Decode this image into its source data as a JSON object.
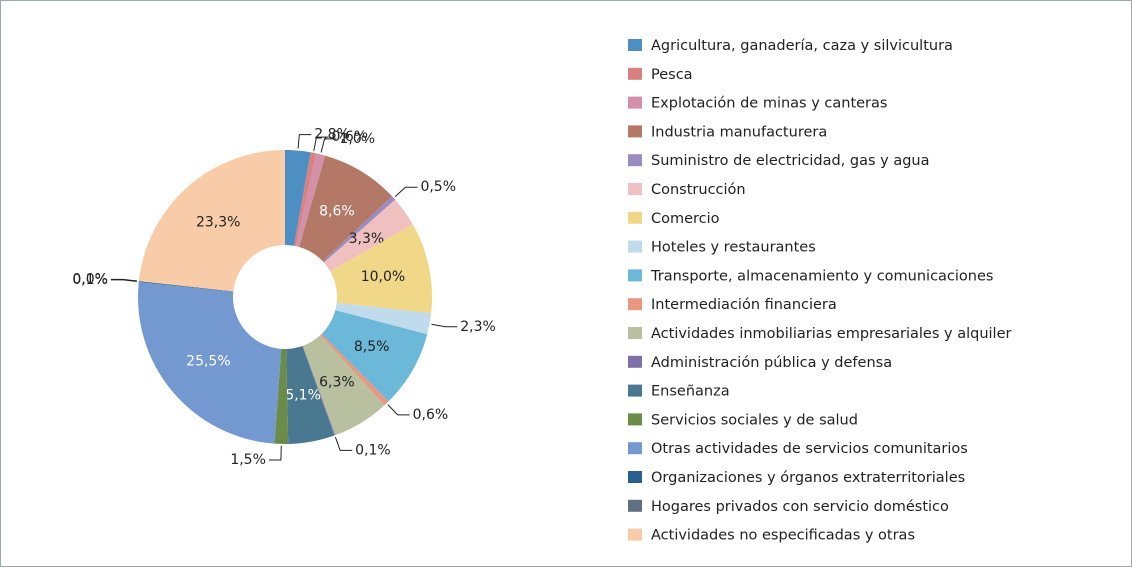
{
  "chart_data": {
    "type": "donut",
    "categories": [
      "Agricultura, ganadería, caza y silvicultura",
      "Pesca",
      "Explotación de minas y canteras",
      "Industria manufacturera",
      "Suministro de electricidad, gas y agua",
      "Construcción",
      "Comercio",
      "Hoteles y restaurantes",
      "Transporte, almacenamiento y comunicaciones",
      "Intermediación financiera",
      "Actividades inmobiliarias empresariales y alquiler",
      "Administración pública y defensa",
      "Enseñanza",
      "Servicios sociales y de salud",
      "Otras actividades de servicios comunitarios",
      "Organizaciones y órganos extraterritoriales",
      "Hogares privados con servicio doméstico",
      "Actividades no especificadas y otras"
    ],
    "values": [
      2.8,
      0.6,
      1.0,
      8.6,
      0.5,
      3.3,
      10.0,
      2.3,
      8.5,
      0.6,
      6.3,
      0.1,
      5.1,
      1.5,
      25.5,
      0.1,
      0.0,
      23.3
    ],
    "value_labels": [
      "2,8%",
      "0,6%",
      "1,0%",
      "8,6%",
      "0,5%",
      "3,3%",
      "10,0%",
      "2,3%",
      "8,5%",
      "0,6%",
      "6,3%",
      "0,1%",
      "5,1%",
      "1,5%",
      "25,5%",
      "0,1%",
      "0,0%",
      "23,3%"
    ],
    "colors": [
      "#4d8fc2",
      "#d98080",
      "#d490a8",
      "#b47866",
      "#9a8cc0",
      "#f0c0c0",
      "#f0d888",
      "#c0dcec",
      "#6cb8d8",
      "#e89880",
      "#b8c0a0",
      "#8070a8",
      "#4a7890",
      "#6a8c48",
      "#7498d0",
      "#2a6090",
      "#607080",
      "#f8cca8"
    ],
    "legend": "right"
  }
}
